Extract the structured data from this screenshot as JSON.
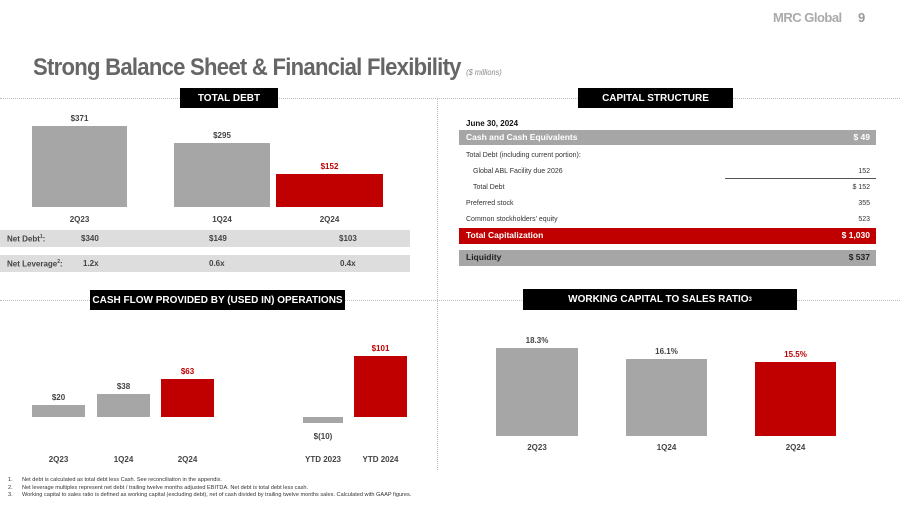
{
  "header": {
    "brand": "MRC Global",
    "page": "9",
    "title": "Strong Balance Sheet & Financial Flexibility",
    "subtitle": "($ millions)"
  },
  "sections": {
    "total_debt": "TOTAL DEBT",
    "capital_structure": "CAPITAL STRUCTURE",
    "cash_flow": "CASH FLOW PROVIDED BY (USED IN) OPERATIONS",
    "working_capital": "WORKING CAPITAL TO SALES RATIO",
    "working_capital_sup": "3"
  },
  "colors": {
    "gray": "#a6a6a6",
    "red": "#c00000",
    "band_gray": "#a6a6a6",
    "row_gray": "#dddddd"
  },
  "chart_data": [
    {
      "type": "bar",
      "title": "TOTAL DEBT",
      "categories": [
        "2Q23",
        "1Q24",
        "2Q24"
      ],
      "values": [
        371,
        295,
        152
      ],
      "labels": [
        "$371",
        "$295",
        "$152"
      ],
      "highlight": [
        false,
        false,
        true
      ]
    },
    {
      "type": "bar",
      "title": "CASH FLOW PROVIDED BY (USED IN) OPERATIONS",
      "categories": [
        "2Q23",
        "1Q24",
        "2Q24",
        "YTD 2023",
        "YTD 2024"
      ],
      "values": [
        20,
        38,
        63,
        -10,
        101
      ],
      "labels": [
        "$20",
        "$38",
        "$63",
        "$(10)",
        "$101"
      ],
      "highlight": [
        false,
        false,
        true,
        false,
        true
      ]
    },
    {
      "type": "bar",
      "title": "WORKING CAPITAL TO SALES RATIO",
      "categories": [
        "2Q23",
        "1Q24",
        "2Q24"
      ],
      "values": [
        18.3,
        16.1,
        15.5
      ],
      "labels": [
        "18.3%",
        "16.1%",
        "15.5%"
      ],
      "highlight": [
        false,
        false,
        true
      ]
    }
  ],
  "debt_table": {
    "net_debt": {
      "label": "Net Debt",
      "sup": "1",
      "values": [
        "$340",
        "$149",
        "$103"
      ]
    },
    "net_leverage": {
      "label": "Net Leverage",
      "sup": "2",
      "values": [
        "1.2x",
        "0.6x",
        "0.4x"
      ]
    }
  },
  "capital": {
    "date": "June 30, 2024",
    "cash": {
      "label": "Cash and Cash Equivalents",
      "value": "$ 49"
    },
    "debt_header": "Total Debt (including  current  portion):",
    "abl": {
      "label": "Global  ABL Facility  due  2026",
      "value": "152"
    },
    "total_debt": {
      "label": "Total  Debt",
      "value": "$ 152"
    },
    "preferred": {
      "label": "Preferred  stock",
      "value": "355"
    },
    "common": {
      "label": "Common  stockholders'  equity",
      "value": "523"
    },
    "total_cap": {
      "label": "Total Capitalization",
      "value": "$ 1,030"
    },
    "liquidity": {
      "label": "Liquidity",
      "value": "$ 537"
    }
  },
  "footnotes": [
    {
      "n": "1.",
      "text": "Net debt is calculated as total debt less Cash. See reconciliation in the appendix."
    },
    {
      "n": "2.",
      "text": "Net leverage multiples represent net debt / trailing twelve months adjusted EBITDA.  Net debt is total debt less cash."
    },
    {
      "n": "3.",
      "text": "Working capital to sales ratio is defined as working capital (excluding debt), net of cash divided by trailing twelve months sales. Calculated with GAAP figures."
    }
  ]
}
